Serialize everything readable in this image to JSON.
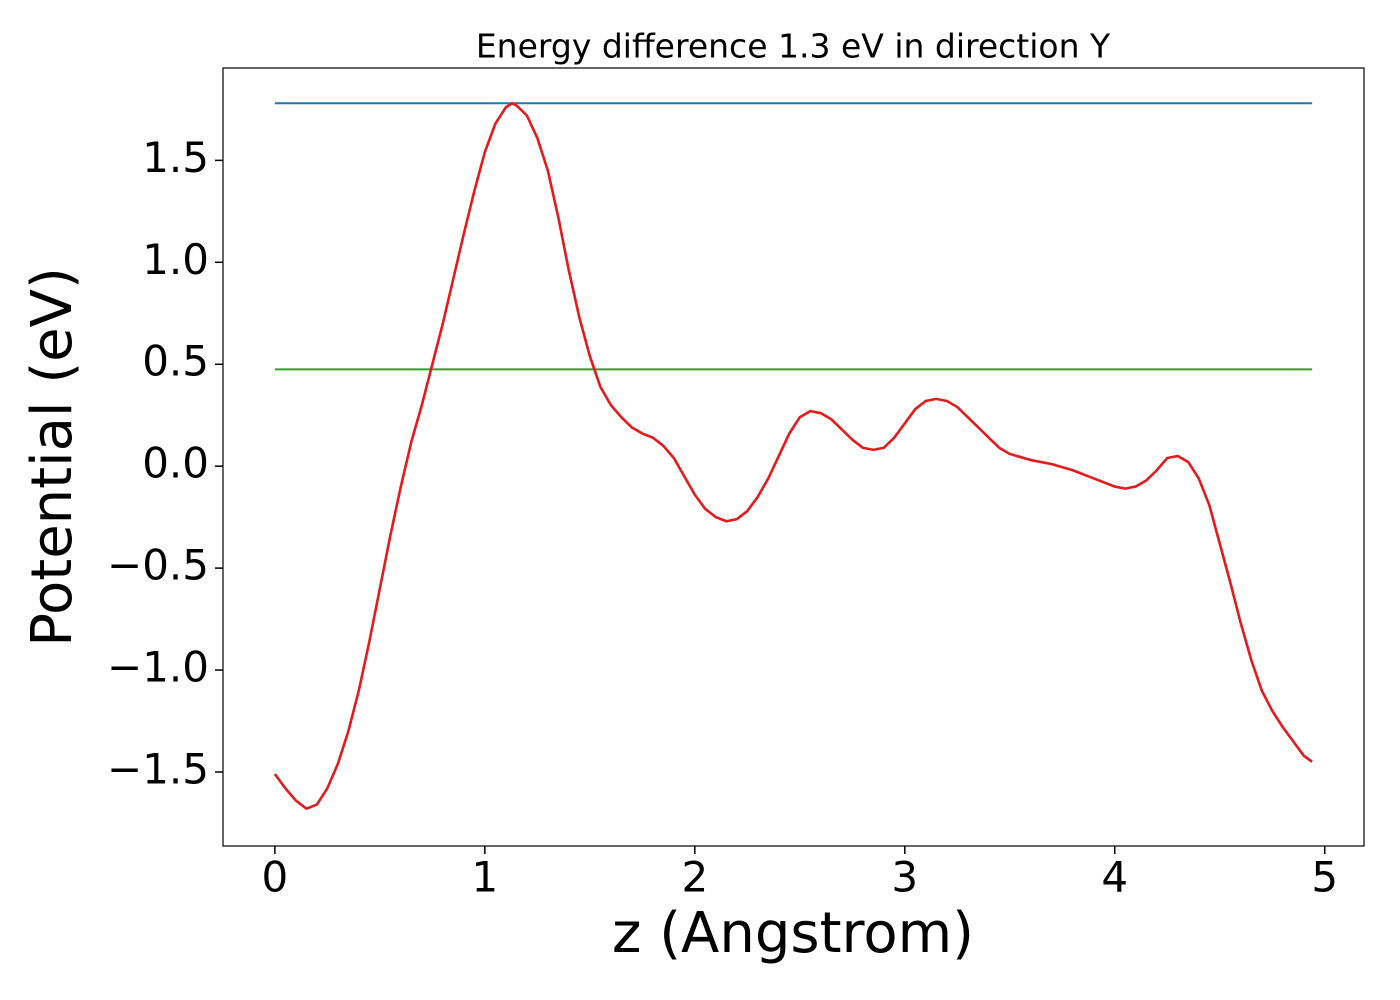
{
  "chart_data": {
    "type": "line",
    "title": "Energy difference 1.3 eV in direction Y",
    "xlabel": "z (Angstrom)",
    "ylabel": "Potential (eV)",
    "xlim": [
      -0.247,
      5.187
    ],
    "ylim": [
      -1.863,
      1.953
    ],
    "xticks": [
      0,
      1,
      2,
      3,
      4,
      5
    ],
    "yticks": [
      {
        "value": -1.5,
        "label": "−1.5"
      },
      {
        "value": -1.0,
        "label": "−1.0"
      },
      {
        "value": -0.5,
        "label": "−0.5"
      },
      {
        "value": 0,
        "label": "0.0"
      },
      0.5,
      {
        "value": 1.0,
        "label": "1.0"
      },
      1.5
    ],
    "grid": false,
    "series": [
      {
        "color": "#1f77b4",
        "x": [
          0,
          4.94
        ],
        "values": [
          1.78,
          1.78
        ]
      },
      {
        "color": "#2ca02c",
        "x": [
          0,
          4.94
        ],
        "values": [
          0.475,
          0.475
        ]
      },
      {
        "color": "#e41a1c",
        "x": [
          0,
          0.05,
          0.1,
          0.15,
          0.2,
          0.25,
          0.3,
          0.35,
          0.4,
          0.45,
          0.5,
          0.55,
          0.6,
          0.65,
          0.7,
          0.75,
          0.8,
          0.85,
          0.9,
          0.95,
          1.0,
          1.05,
          1.1,
          1.13,
          1.15,
          1.2,
          1.25,
          1.3,
          1.35,
          1.4,
          1.45,
          1.5,
          1.55,
          1.6,
          1.65,
          1.7,
          1.75,
          1.8,
          1.85,
          1.9,
          1.95,
          2.0,
          2.05,
          2.1,
          2.15,
          2.2,
          2.25,
          2.3,
          2.35,
          2.4,
          2.45,
          2.5,
          2.55,
          2.6,
          2.65,
          2.7,
          2.75,
          2.8,
          2.85,
          2.9,
          2.95,
          3.0,
          3.05,
          3.1,
          3.15,
          3.2,
          3.25,
          3.3,
          3.35,
          3.4,
          3.45,
          3.5,
          3.6,
          3.7,
          3.8,
          3.9,
          4.0,
          4.05,
          4.1,
          4.15,
          4.2,
          4.25,
          4.3,
          4.35,
          4.4,
          4.45,
          4.5,
          4.55,
          4.6,
          4.65,
          4.7,
          4.75,
          4.8,
          4.85,
          4.9,
          4.94
        ],
        "values": [
          -1.51,
          -1.58,
          -1.64,
          -1.68,
          -1.66,
          -1.58,
          -1.46,
          -1.3,
          -1.1,
          -0.86,
          -0.6,
          -0.34,
          -0.1,
          0.12,
          0.3,
          0.5,
          0.7,
          0.92,
          1.14,
          1.35,
          1.54,
          1.68,
          1.76,
          1.78,
          1.77,
          1.72,
          1.61,
          1.45,
          1.22,
          0.96,
          0.73,
          0.54,
          0.39,
          0.3,
          0.24,
          0.19,
          0.16,
          0.14,
          0.1,
          0.04,
          -0.05,
          -0.14,
          -0.21,
          -0.25,
          -0.27,
          -0.26,
          -0.22,
          -0.15,
          -0.06,
          0.05,
          0.16,
          0.24,
          0.27,
          0.26,
          0.23,
          0.18,
          0.13,
          0.09,
          0.08,
          0.09,
          0.14,
          0.21,
          0.28,
          0.32,
          0.33,
          0.32,
          0.29,
          0.24,
          0.19,
          0.14,
          0.09,
          0.06,
          0.03,
          0.01,
          -0.02,
          -0.06,
          -0.1,
          -0.11,
          -0.1,
          -0.07,
          -0.02,
          0.04,
          0.05,
          0.02,
          -0.06,
          -0.19,
          -0.38,
          -0.57,
          -0.77,
          -0.95,
          -1.1,
          -1.2,
          -1.28,
          -1.35,
          -1.42,
          -1.45
        ]
      }
    ]
  }
}
